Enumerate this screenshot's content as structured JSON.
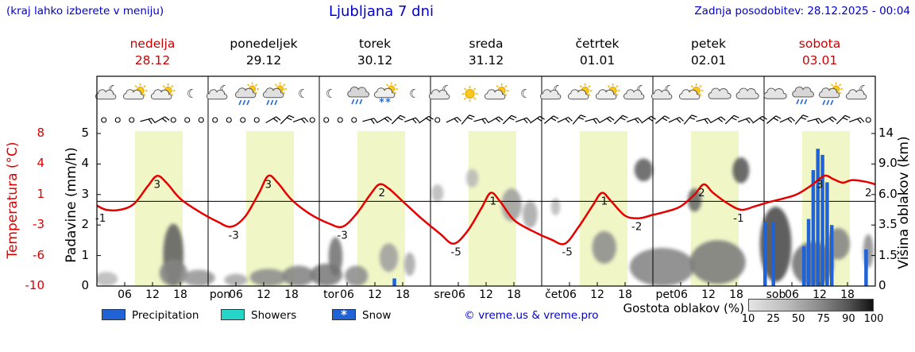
{
  "header": {
    "hint": "(kraj lahko izberete v meniju)",
    "title": "Ljubljana 7 dni",
    "updated": "Zadnja posodobitev: 28.12.2025 - 00:04"
  },
  "axes": {
    "temp_label": "Temperatura (°C)",
    "precip_label": "Padavine (mm/h)",
    "cloud_label": "Višina oblakov (km)",
    "temp_ticks": [
      "8",
      "4",
      "1",
      "-3",
      "-6",
      "-10"
    ],
    "precip_ticks": [
      "5",
      "4",
      "3",
      "2",
      "1",
      "0"
    ],
    "cloud_ticks": [
      "14",
      "9.0",
      "6.0",
      "3.5",
      "1.5",
      "0"
    ],
    "hour_ticks": [
      "06",
      "12",
      "18"
    ],
    "day_abbrevs": [
      "pon",
      "tor",
      "sre",
      "čet",
      "pet",
      "sob"
    ]
  },
  "days": [
    {
      "name": "nedelja",
      "date": "28.12",
      "red": true
    },
    {
      "name": "ponedeljek",
      "date": "29.12",
      "red": false
    },
    {
      "name": "torek",
      "date": "30.12",
      "red": false
    },
    {
      "name": "sreda",
      "date": "31.12",
      "red": false
    },
    {
      "name": "četrtek",
      "date": "01.01",
      "red": false
    },
    {
      "name": "petek",
      "date": "02.01",
      "red": false
    },
    {
      "name": "sobota",
      "date": "03.01",
      "red": true
    }
  ],
  "legend": {
    "precipitation": "Precipitation",
    "showers": "Showers",
    "snow": "Snow",
    "credit": "© vreme.us & vreme.pro",
    "cloud_density": "Gostota oblakov (%)",
    "density_ticks": [
      "10",
      "25",
      "50",
      "75",
      "90",
      "100"
    ]
  },
  "colors": {
    "blue_text": "#0000cc",
    "red_text": "#dd0000",
    "temp_line": "#e60000",
    "precip_bar": "#1f63d6",
    "showers": "#25d5c8",
    "daylight_band": "#f0f6c6"
  },
  "chart_data": {
    "type": "line",
    "title": "Ljubljana 7 dni",
    "x_unit": "hours from 2025-12-28 00:00",
    "x_range": [
      0,
      168
    ],
    "temp_axis_c": [
      -10,
      8
    ],
    "precip_axis_mm_h": [
      0,
      5
    ],
    "cloud_height_axis_km": [
      0,
      1.5,
      3.5,
      6,
      9,
      14
    ],
    "daylight_hours": [
      8.2,
      18.5
    ],
    "temperature_c": [
      [
        0,
        -0.5
      ],
      [
        2,
        -1
      ],
      [
        5,
        -1
      ],
      [
        8,
        -0.3
      ],
      [
        11,
        1.8
      ],
      [
        13,
        3
      ],
      [
        15,
        2.2
      ],
      [
        18,
        0.3
      ],
      [
        22,
        -1.2
      ],
      [
        26,
        -2.4
      ],
      [
        29,
        -3
      ],
      [
        32,
        -1.8
      ],
      [
        35,
        1
      ],
      [
        37,
        3
      ],
      [
        39,
        2.2
      ],
      [
        42,
        0.2
      ],
      [
        46,
        -1.5
      ],
      [
        50,
        -2.6
      ],
      [
        53,
        -3
      ],
      [
        56,
        -1.5
      ],
      [
        59,
        0.8
      ],
      [
        61,
        2
      ],
      [
        63,
        1.5
      ],
      [
        66,
        0
      ],
      [
        70,
        -2
      ],
      [
        74,
        -3.8
      ],
      [
        77,
        -5
      ],
      [
        80,
        -3.5
      ],
      [
        83,
        -0.8
      ],
      [
        85,
        1
      ],
      [
        87,
        0
      ],
      [
        90,
        -2.2
      ],
      [
        94,
        -3.5
      ],
      [
        98,
        -4.5
      ],
      [
        101,
        -5
      ],
      [
        104,
        -3
      ],
      [
        107,
        -0.5
      ],
      [
        109,
        1
      ],
      [
        111,
        0
      ],
      [
        114,
        -1.7
      ],
      [
        117,
        -2
      ],
      [
        120,
        -1.6
      ],
      [
        123,
        -1.2
      ],
      [
        126,
        -0.6
      ],
      [
        129,
        0.8
      ],
      [
        131,
        2
      ],
      [
        133,
        1
      ],
      [
        136,
        -0.2
      ],
      [
        139,
        -1
      ],
      [
        142,
        -0.6
      ],
      [
        145,
        -0.1
      ],
      [
        148,
        0.3
      ],
      [
        151,
        0.8
      ],
      [
        154,
        1.8
      ],
      [
        157,
        3
      ],
      [
        159,
        2.6
      ],
      [
        161,
        2.2
      ],
      [
        163,
        2.5
      ],
      [
        166,
        2.3
      ],
      [
        168,
        2
      ]
    ],
    "temperature_labels": [
      {
        "t": 0.8,
        "v": -1,
        "text": "-1"
      },
      {
        "t": 13,
        "v": 3,
        "text": "3"
      },
      {
        "t": 29.5,
        "v": -3,
        "text": "-3"
      },
      {
        "t": 37,
        "v": 3,
        "text": "3"
      },
      {
        "t": 53,
        "v": -3,
        "text": "-3"
      },
      {
        "t": 61.5,
        "v": 2,
        "text": "2"
      },
      {
        "t": 77.5,
        "v": -5,
        "text": "-5"
      },
      {
        "t": 85.5,
        "v": 1,
        "text": "1"
      },
      {
        "t": 101.5,
        "v": -5,
        "text": "-5"
      },
      {
        "t": 109.5,
        "v": 1,
        "text": "1"
      },
      {
        "t": 116.5,
        "v": -2,
        "text": "-2"
      },
      {
        "t": 130.5,
        "v": 2,
        "text": "2"
      },
      {
        "t": 138.5,
        "v": -1,
        "text": "-1"
      },
      {
        "t": 156,
        "v": 3,
        "text": "3"
      },
      {
        "t": 166.5,
        "v": 2,
        "text": "2"
      }
    ],
    "precipitation_mm_h": [
      {
        "t": 64.2,
        "v": 0.25
      },
      {
        "t": 144.2,
        "v": 2.1
      },
      {
        "t": 146,
        "v": 2.1
      },
      {
        "t": 152.6,
        "v": 1.3
      },
      {
        "t": 153.6,
        "v": 2.2
      },
      {
        "t": 154.6,
        "v": 3.8
      },
      {
        "t": 155.6,
        "v": 4.5
      },
      {
        "t": 156.6,
        "v": 4.3
      },
      {
        "t": 157.6,
        "v": 3.4
      },
      {
        "t": 158.6,
        "v": 2
      },
      {
        "t": 166,
        "v": 1.2
      }
    ],
    "weather_icons": [
      {
        "t": 2.5,
        "type": "cloud-moon"
      },
      {
        "t": 8.5,
        "type": "cloud-sun"
      },
      {
        "t": 14.5,
        "type": "cloud-sun"
      },
      {
        "t": 20.5,
        "type": "moon"
      },
      {
        "t": 26.5,
        "type": "cloud-moon"
      },
      {
        "t": 32.5,
        "type": "rain-sun"
      },
      {
        "t": 38.5,
        "type": "rain-sun"
      },
      {
        "t": 44.5,
        "type": "moon"
      },
      {
        "t": 50.5,
        "type": "moon"
      },
      {
        "t": 56.5,
        "type": "rain"
      },
      {
        "t": 62.5,
        "type": "snow-sun"
      },
      {
        "t": 68.5,
        "type": "moon"
      },
      {
        "t": 74.5,
        "type": "cloud-moon"
      },
      {
        "t": 80.5,
        "type": "sun"
      },
      {
        "t": 86.5,
        "type": "cloud-sun"
      },
      {
        "t": 92.5,
        "type": "moon"
      },
      {
        "t": 98.5,
        "type": "cloud-moon"
      },
      {
        "t": 104.5,
        "type": "cloud-sun"
      },
      {
        "t": 110.5,
        "type": "cloud-sun"
      },
      {
        "t": 116.5,
        "type": "cloud-moon"
      },
      {
        "t": 122.5,
        "type": "cloud-moon"
      },
      {
        "t": 128.5,
        "type": "cloud-sun"
      },
      {
        "t": 134.5,
        "type": "cloud"
      },
      {
        "t": 140.5,
        "type": "cloud"
      },
      {
        "t": 146.5,
        "type": "cloud"
      },
      {
        "t": 152.5,
        "type": "rain"
      },
      {
        "t": 158.5,
        "type": "rain-sun"
      },
      {
        "t": 164.5,
        "type": "cloud-moon"
      }
    ],
    "wind": {
      "start_h": 1.5,
      "step_h": 3,
      "pattern": [
        "ooobbooo",
        "oooobbbo",
        "ooobbbbb",
        "obbbbbbb",
        "bbbbbbbb",
        "bbbbbbbb",
        "bbbbbbbo"
      ]
    },
    "clouds": [
      {
        "t": 2,
        "km": 0.3,
        "rh": 2.5,
        "rkm": 0.4,
        "density": 30
      },
      {
        "t": 16.5,
        "km": 1.8,
        "rh": 2.2,
        "rkm": 1.8,
        "density": 80
      },
      {
        "t": 16.5,
        "km": 0.6,
        "rh": 3,
        "rkm": 0.7,
        "density": 60
      },
      {
        "t": 22,
        "km": 0.35,
        "rh": 3.5,
        "rkm": 0.45,
        "density": 50
      },
      {
        "t": 30,
        "km": 0.25,
        "rh": 2.5,
        "rkm": 0.35,
        "density": 40
      },
      {
        "t": 37,
        "km": 0.35,
        "rh": 4,
        "rkm": 0.5,
        "density": 55
      },
      {
        "t": 43.5,
        "km": 0.45,
        "rh": 3.5,
        "rkm": 0.55,
        "density": 60
      },
      {
        "t": 49.5,
        "km": 0.5,
        "rh": 3.5,
        "rkm": 0.6,
        "density": 65
      },
      {
        "t": 51.5,
        "km": 1.6,
        "rh": 1.5,
        "rkm": 1.1,
        "density": 70
      },
      {
        "t": 56,
        "km": 0.5,
        "rh": 2.5,
        "rkm": 0.5,
        "density": 55
      },
      {
        "t": 63,
        "km": 1.5,
        "rh": 2,
        "rkm": 0.8,
        "density": 45
      },
      {
        "t": 67.5,
        "km": 1.1,
        "rh": 1.2,
        "rkm": 0.6,
        "density": 40
      },
      {
        "t": 73.5,
        "km": 6.2,
        "rh": 1.3,
        "rkm": 0.8,
        "density": 30
      },
      {
        "t": 81,
        "km": 7.6,
        "rh": 1.3,
        "rkm": 0.9,
        "density": 30
      },
      {
        "t": 89.5,
        "km": 5.2,
        "rh": 2.2,
        "rkm": 1.4,
        "density": 45
      },
      {
        "t": 93.5,
        "km": 4.4,
        "rh": 1.6,
        "rkm": 1.1,
        "density": 40
      },
      {
        "t": 99,
        "km": 5,
        "rh": 1,
        "rkm": 0.7,
        "density": 30
      },
      {
        "t": 109.5,
        "km": 2.1,
        "rh": 2.6,
        "rkm": 1,
        "density": 55
      },
      {
        "t": 118,
        "km": 8.6,
        "rh": 2,
        "rkm": 1.3,
        "density": 80
      },
      {
        "t": 122,
        "km": 1,
        "rh": 7,
        "rkm": 1,
        "density": 60
      },
      {
        "t": 129,
        "km": 5.6,
        "rh": 1.5,
        "rkm": 1,
        "density": 75
      },
      {
        "t": 134,
        "km": 1.3,
        "rh": 6,
        "rkm": 1.2,
        "density": 65
      },
      {
        "t": 139,
        "km": 8.6,
        "rh": 1.8,
        "rkm": 1.5,
        "density": 85
      },
      {
        "t": 146.5,
        "km": 2.6,
        "rh": 3.4,
        "rkm": 2.4,
        "density": 92
      },
      {
        "t": 154.5,
        "km": 1.2,
        "rh": 4.5,
        "rkm": 1.2,
        "density": 70
      },
      {
        "t": 160,
        "km": 2.3,
        "rh": 2.5,
        "rkm": 1,
        "density": 60
      },
      {
        "t": 166.5,
        "km": 1.9,
        "rh": 1.1,
        "rkm": 1,
        "density": 55
      }
    ]
  }
}
